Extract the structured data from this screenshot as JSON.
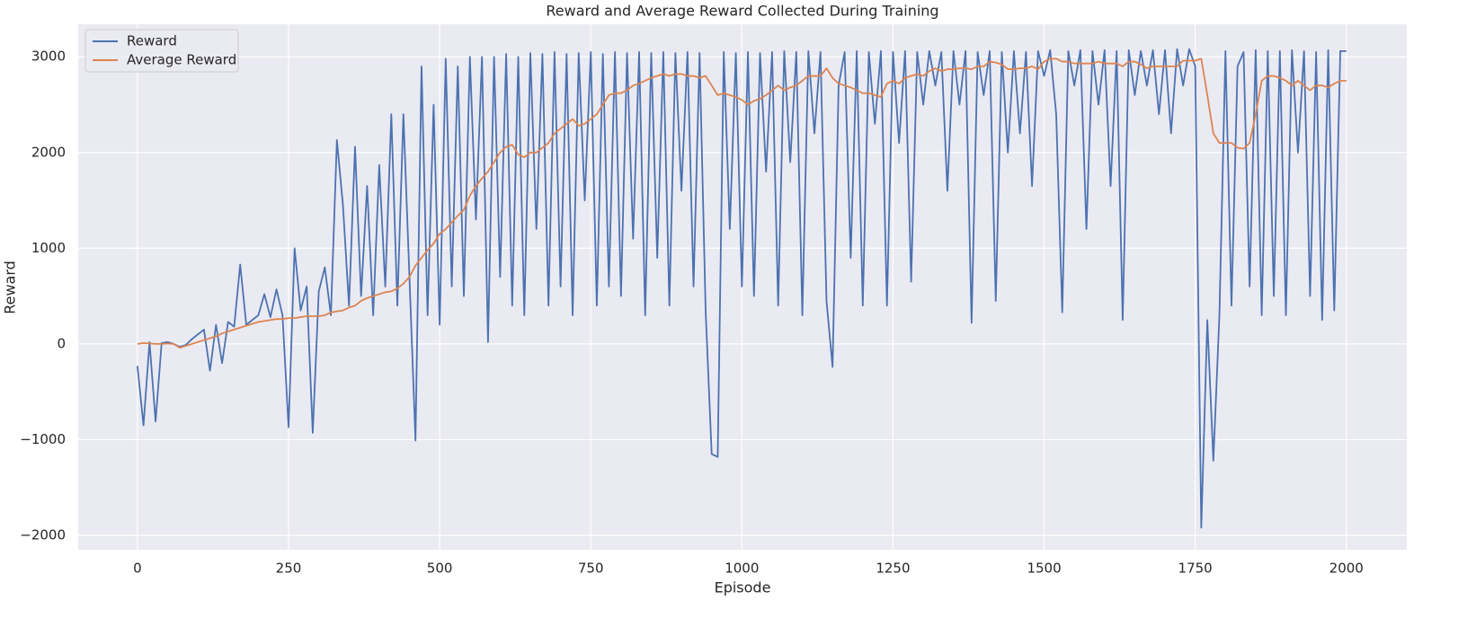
{
  "chart_data": {
    "type": "line",
    "title": "Reward and Average Reward Collected During Training",
    "xlabel": "Episode",
    "ylabel": "Reward",
    "xlim": [
      -98,
      2100
    ],
    "ylim": [
      -2150,
      3340
    ],
    "xticks": [
      0,
      250,
      500,
      750,
      1000,
      1250,
      1500,
      1750,
      2000
    ],
    "yticks": [
      {
        "value": -2000,
        "label": "−2000"
      },
      {
        "value": -1000,
        "label": "−1000"
      },
      0,
      1000,
      2000,
      3000
    ],
    "grid": true,
    "legend": "upper left",
    "x": [
      0,
      10,
      20,
      30,
      40,
      50,
      60,
      70,
      80,
      90,
      100,
      110,
      120,
      130,
      140,
      150,
      160,
      170,
      180,
      190,
      200,
      210,
      220,
      230,
      240,
      250,
      260,
      270,
      280,
      290,
      300,
      310,
      320,
      330,
      340,
      350,
      360,
      370,
      380,
      390,
      400,
      410,
      420,
      430,
      440,
      450,
      460,
      470,
      480,
      490,
      500,
      510,
      520,
      530,
      540,
      550,
      560,
      570,
      580,
      590,
      600,
      610,
      620,
      630,
      640,
      650,
      660,
      670,
      680,
      690,
      700,
      710,
      720,
      730,
      740,
      750,
      760,
      770,
      780,
      790,
      800,
      810,
      820,
      830,
      840,
      850,
      860,
      870,
      880,
      890,
      900,
      910,
      920,
      930,
      940,
      950,
      960,
      970,
      980,
      990,
      1000,
      1010,
      1020,
      1030,
      1040,
      1050,
      1060,
      1070,
      1080,
      1090,
      1100,
      1110,
      1120,
      1130,
      1140,
      1150,
      1160,
      1170,
      1180,
      1190,
      1200,
      1210,
      1220,
      1230,
      1240,
      1250,
      1260,
      1270,
      1280,
      1290,
      1300,
      1310,
      1320,
      1330,
      1340,
      1350,
      1360,
      1370,
      1380,
      1390,
      1400,
      1410,
      1420,
      1430,
      1440,
      1450,
      1460,
      1470,
      1480,
      1490,
      1500,
      1510,
      1520,
      1530,
      1540,
      1550,
      1560,
      1570,
      1580,
      1590,
      1600,
      1610,
      1620,
      1630,
      1640,
      1650,
      1660,
      1670,
      1680,
      1690,
      1700,
      1710,
      1720,
      1730,
      1740,
      1750,
      1760,
      1770,
      1780,
      1790,
      1800,
      1810,
      1820,
      1830,
      1840,
      1850,
      1860,
      1870,
      1880,
      1890,
      1900,
      1910,
      1920,
      1930,
      1940,
      1950,
      1960,
      1970,
      1980,
      1990,
      2000
    ],
    "series": [
      {
        "name": "Reward",
        "color": "#4c72b0",
        "values": [
          -230,
          -850,
          20,
          -810,
          10,
          20,
          0,
          -30,
          -10,
          50,
          100,
          150,
          -280,
          200,
          -200,
          230,
          180,
          830,
          200,
          250,
          300,
          520,
          280,
          570,
          300,
          -870,
          1000,
          350,
          600,
          -930,
          550,
          800,
          300,
          2130,
          1450,
          400,
          2060,
          500,
          1650,
          300,
          1870,
          600,
          2400,
          400,
          2400,
          700,
          -1010,
          2900,
          300,
          2500,
          200,
          2980,
          600,
          2900,
          500,
          3000,
          1300,
          3000,
          20,
          3000,
          700,
          3030,
          400,
          3000,
          300,
          3040,
          1200,
          3030,
          400,
          3050,
          600,
          3030,
          300,
          3040,
          1500,
          3050,
          400,
          3030,
          600,
          3050,
          500,
          3040,
          1100,
          3050,
          300,
          3040,
          900,
          3050,
          400,
          3040,
          1600,
          3050,
          600,
          3040,
          350,
          -1150,
          -1180,
          3050,
          1200,
          3040,
          600,
          3050,
          500,
          3040,
          1800,
          3050,
          400,
          3060,
          1900,
          3050,
          300,
          3060,
          2200,
          3050,
          450,
          -240,
          2700,
          3050,
          900,
          3060,
          400,
          3050,
          2300,
          3060,
          400,
          3050,
          2100,
          3060,
          650,
          3050,
          2500,
          3060,
          2700,
          3050,
          1600,
          3060,
          2500,
          3060,
          220,
          3050,
          2600,
          3060,
          450,
          3050,
          2000,
          3060,
          2200,
          3050,
          1650,
          3060,
          2800,
          3070,
          2400,
          330,
          3060,
          2700,
          3070,
          1200,
          3060,
          2500,
          3070,
          1650,
          3060,
          250,
          3070,
          2600,
          3060,
          2700,
          3070,
          2400,
          3070,
          2200,
          3080,
          2700,
          3080,
          2900,
          -1920,
          250,
          -1220,
          300,
          3060,
          400,
          2900,
          3050,
          600,
          3070,
          300,
          3060,
          500,
          3060,
          300,
          3070,
          2000,
          3060,
          500,
          3050,
          250,
          3070,
          350,
          3060,
          3060
        ]
      },
      {
        "name": "Average Reward",
        "color": "#dd8452",
        "values": [
          0,
          10,
          5,
          0,
          0,
          5,
          0,
          -40,
          -20,
          0,
          20,
          40,
          60,
          80,
          110,
          130,
          150,
          170,
          190,
          210,
          230,
          240,
          250,
          260,
          260,
          270,
          270,
          280,
          290,
          290,
          290,
          300,
          330,
          340,
          350,
          380,
          400,
          450,
          480,
          500,
          520,
          540,
          550,
          580,
          630,
          700,
          820,
          900,
          980,
          1050,
          1150,
          1200,
          1270,
          1340,
          1400,
          1550,
          1650,
          1730,
          1800,
          1900,
          2000,
          2060,
          2080,
          1980,
          1950,
          2000,
          2000,
          2050,
          2100,
          2200,
          2250,
          2300,
          2350,
          2280,
          2300,
          2350,
          2400,
          2500,
          2600,
          2620,
          2620,
          2650,
          2700,
          2720,
          2750,
          2780,
          2800,
          2820,
          2800,
          2820,
          2820,
          2800,
          2800,
          2780,
          2800,
          2700,
          2600,
          2620,
          2600,
          2580,
          2550,
          2500,
          2540,
          2560,
          2600,
          2650,
          2700,
          2650,
          2680,
          2700,
          2750,
          2800,
          2800,
          2800,
          2880,
          2780,
          2720,
          2700,
          2680,
          2650,
          2620,
          2620,
          2600,
          2580,
          2720,
          2750,
          2720,
          2780,
          2800,
          2820,
          2800,
          2850,
          2880,
          2850,
          2870,
          2870,
          2880,
          2880,
          2870,
          2900,
          2900,
          2950,
          2940,
          2920,
          2870,
          2870,
          2880,
          2880,
          2900,
          2870,
          2950,
          2980,
          2980,
          2950,
          2950,
          2930,
          2930,
          2930,
          2930,
          2950,
          2930,
          2930,
          2930,
          2900,
          2950,
          2950,
          2920,
          2880,
          2900,
          2900,
          2900,
          2900,
          2900,
          2960,
          2960,
          2960,
          2980,
          2600,
          2200,
          2100,
          2100,
          2100,
          2050,
          2040,
          2100,
          2400,
          2750,
          2800,
          2800,
          2780,
          2750,
          2700,
          2750,
          2700,
          2650,
          2700,
          2700,
          2680,
          2720,
          2750,
          2750
        ]
      }
    ]
  }
}
